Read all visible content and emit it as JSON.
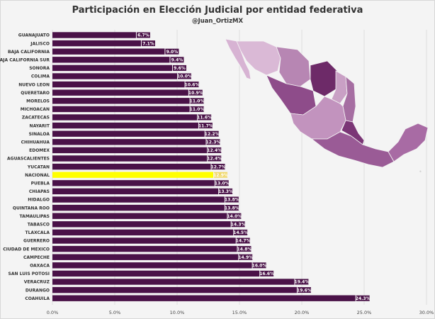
{
  "title": "Participación en Elección Judicial por entidad federativa",
  "subtitle": "@Juan_OrtizMX",
  "colors": {
    "bar": "#4a1248",
    "highlight": "#ffff00",
    "highlight_label_bg": "#f0d86a",
    "grid": "#cfcfcf",
    "map_light": "#e8cde4",
    "map_mid": "#b179ad",
    "map_dark": "#6d2a68"
  },
  "chart_data": {
    "type": "bar",
    "orientation": "horizontal",
    "title": "Participación en Elección Judicial por entidad federativa",
    "xlim": [
      0,
      30
    ],
    "xticks": [
      "0.0%",
      "5.0%",
      "10.0%",
      "15.0%",
      "20.0%",
      "25.0%",
      "30.0%"
    ],
    "tick_values": [
      0,
      5,
      10,
      15,
      20,
      25,
      30
    ],
    "grid": true,
    "highlight": "NACIONAL",
    "categories": [
      "GUANAJUATO",
      "JALISCO",
      "BAJA CALIFORNIA",
      "BAJA CALIFORNIA SUR",
      "SONORA",
      "COLIMA",
      "NUEVO LEON",
      "QUERETARO",
      "MORELOS",
      "MICHOACAN",
      "ZACATECAS",
      "NAYARIT",
      "SINALOA",
      "CHIHUAHUA",
      "EDOMEX",
      "AGUASCALIENTES",
      "YUCATAN",
      "NACIONAL",
      "PUEBLA",
      "CHIAPAS",
      "HIDALGO",
      "QUINTANA ROO",
      "TAMAULIPAS",
      "TABASCO",
      "TLAXCALA",
      "GUERRERO",
      "CIUDAD DE MEXICO",
      "CAMPECHE",
      "OAXACA",
      "SAN LUIS POTOSI",
      "VERACRUZ",
      "DURANGO",
      "COAHUILA"
    ],
    "values": [
      6.7,
      7.1,
      9.0,
      9.4,
      9.6,
      10.0,
      10.6,
      10.9,
      11.0,
      11.0,
      11.6,
      11.7,
      12.2,
      12.3,
      12.4,
      12.4,
      12.7,
      12.9,
      13.0,
      13.3,
      13.8,
      13.8,
      14.0,
      14.3,
      14.5,
      14.7,
      14.8,
      14.9,
      16.0,
      16.6,
      19.4,
      19.6,
      24.3
    ],
    "labels": [
      "6.7%",
      "7.1%",
      "9.0%",
      "9.4%",
      "9.6%",
      "10.0%",
      "10.6%",
      "10.9%",
      "11.0%",
      "11.0%",
      "11.6%",
      "11.7%",
      "12.2%",
      "12.3%",
      "12.4%",
      "12.4%",
      "12.7%",
      "12.9%",
      "13.0%",
      "13.3%",
      "13.8%",
      "13.8%",
      "14.0%",
      "14.3%",
      "14.5%",
      "14.7%",
      "14.8%",
      "14.9%",
      "16.0%",
      "16.6%",
      "19.4%",
      "19.6%",
      "24.3%"
    ]
  }
}
